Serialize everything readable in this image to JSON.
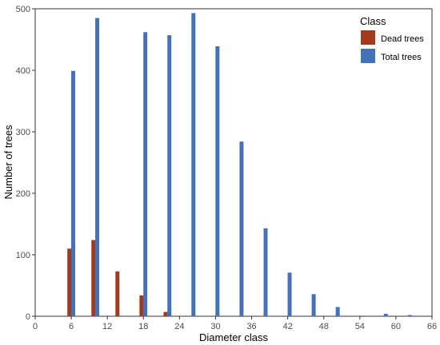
{
  "chart_data": {
    "type": "bar",
    "title": "",
    "xlabel": "Diameter class",
    "ylabel": "Number of trees",
    "x": [
      6,
      10,
      14,
      18,
      22,
      26,
      30,
      34,
      38,
      42,
      46,
      50,
      54,
      58,
      62
    ],
    "series": [
      {
        "name": "Dead trees",
        "color": "#a23a1e",
        "values": [
          110,
          124,
          73,
          34,
          7,
          0,
          0,
          0,
          0,
          0,
          0,
          0,
          0,
          0,
          0
        ]
      },
      {
        "name": "Total trees",
        "color": "#4472b8",
        "values": [
          399,
          485,
          0,
          462,
          457,
          493,
          439,
          284,
          143,
          71,
          36,
          15,
          1,
          4,
          2
        ]
      }
    ],
    "xlim": [
      0,
      66
    ],
    "ylim": [
      0,
      500
    ],
    "xticks": [
      0,
      6,
      12,
      18,
      24,
      30,
      36,
      42,
      48,
      54,
      60,
      66
    ],
    "yticks": [
      0,
      100,
      200,
      300,
      400,
      500
    ],
    "legend": {
      "title": "Class",
      "position": "top-right"
    },
    "grid": false
  }
}
